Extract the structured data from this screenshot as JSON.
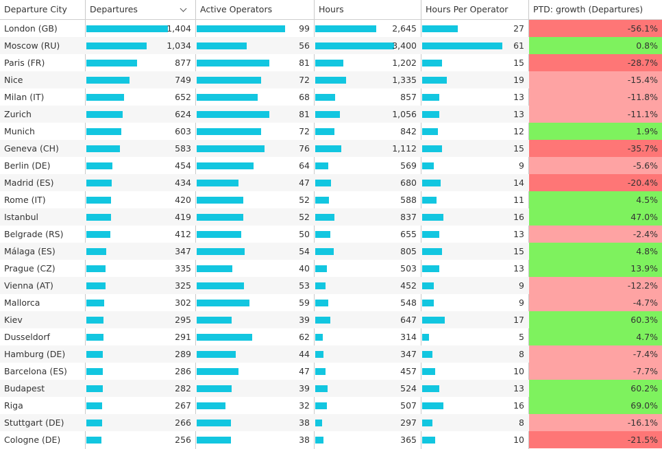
{
  "columns": {
    "city": "Departure City",
    "departures": "Departures",
    "operators": "Active Operators",
    "hours": "Hours",
    "hours_per_operator": "Hours Per Operator",
    "growth": "PTD: growth (Departures)"
  },
  "sort": {
    "column": "departures",
    "icon": "chevron-down-icon"
  },
  "colors": {
    "bar": "#12c6e0",
    "growth_strong_negative": "#fe7676",
    "growth_negative": "#fea3a3",
    "growth_positive": "#7ef25e"
  },
  "rows": [
    {
      "city": "London (GB)",
      "departures": "1,404",
      "departures_value": 1404,
      "operators": "99",
      "operators_value": 99,
      "hours": "2,645",
      "hours_value": 2645,
      "hpo": "27",
      "hpo_value": 27,
      "growth": "-56.1%",
      "growth_value": -56.1
    },
    {
      "city": "Moscow (RU)",
      "departures": "1,034",
      "departures_value": 1034,
      "operators": "56",
      "operators_value": 56,
      "hours": "3,400",
      "hours_value": 3400,
      "hpo": "61",
      "hpo_value": 61,
      "growth": "0.8%",
      "growth_value": 0.8
    },
    {
      "city": "Paris (FR)",
      "departures": "877",
      "departures_value": 877,
      "operators": "81",
      "operators_value": 81,
      "hours": "1,202",
      "hours_value": 1202,
      "hpo": "15",
      "hpo_value": 15,
      "growth": "-28.7%",
      "growth_value": -28.7
    },
    {
      "city": "Nice",
      "departures": "749",
      "departures_value": 749,
      "operators": "72",
      "operators_value": 72,
      "hours": "1,335",
      "hours_value": 1335,
      "hpo": "19",
      "hpo_value": 19,
      "growth": "-15.4%",
      "growth_value": -15.4
    },
    {
      "city": "Milan (IT)",
      "departures": "652",
      "departures_value": 652,
      "operators": "68",
      "operators_value": 68,
      "hours": "857",
      "hours_value": 857,
      "hpo": "13",
      "hpo_value": 13,
      "growth": "-11.8%",
      "growth_value": -11.8
    },
    {
      "city": "Zurich",
      "departures": "624",
      "departures_value": 624,
      "operators": "81",
      "operators_value": 81,
      "hours": "1,056",
      "hours_value": 1056,
      "hpo": "13",
      "hpo_value": 13,
      "growth": "-11.1%",
      "growth_value": -11.1
    },
    {
      "city": "Munich",
      "departures": "603",
      "departures_value": 603,
      "operators": "72",
      "operators_value": 72,
      "hours": "842",
      "hours_value": 842,
      "hpo": "12",
      "hpo_value": 12,
      "growth": "1.9%",
      "growth_value": 1.9
    },
    {
      "city": "Geneva (CH)",
      "departures": "583",
      "departures_value": 583,
      "operators": "76",
      "operators_value": 76,
      "hours": "1,112",
      "hours_value": 1112,
      "hpo": "15",
      "hpo_value": 15,
      "growth": "-35.7%",
      "growth_value": -35.7
    },
    {
      "city": "Berlin (DE)",
      "departures": "454",
      "departures_value": 454,
      "operators": "64",
      "operators_value": 64,
      "hours": "569",
      "hours_value": 569,
      "hpo": "9",
      "hpo_value": 9,
      "growth": "-5.6%",
      "growth_value": -5.6
    },
    {
      "city": "Madrid (ES)",
      "departures": "434",
      "departures_value": 434,
      "operators": "47",
      "operators_value": 47,
      "hours": "680",
      "hours_value": 680,
      "hpo": "14",
      "hpo_value": 14,
      "growth": "-20.4%",
      "growth_value": -20.4
    },
    {
      "city": "Rome (IT)",
      "departures": "420",
      "departures_value": 420,
      "operators": "52",
      "operators_value": 52,
      "hours": "588",
      "hours_value": 588,
      "hpo": "11",
      "hpo_value": 11,
      "growth": "4.5%",
      "growth_value": 4.5
    },
    {
      "city": "Istanbul",
      "departures": "419",
      "departures_value": 419,
      "operators": "52",
      "operators_value": 52,
      "hours": "837",
      "hours_value": 837,
      "hpo": "16",
      "hpo_value": 16,
      "growth": "47.0%",
      "growth_value": 47.0
    },
    {
      "city": "Belgrade (RS)",
      "departures": "412",
      "departures_value": 412,
      "operators": "50",
      "operators_value": 50,
      "hours": "655",
      "hours_value": 655,
      "hpo": "13",
      "hpo_value": 13,
      "growth": "-2.4%",
      "growth_value": -2.4
    },
    {
      "city": "Málaga (ES)",
      "departures": "347",
      "departures_value": 347,
      "operators": "54",
      "operators_value": 54,
      "hours": "805",
      "hours_value": 805,
      "hpo": "15",
      "hpo_value": 15,
      "growth": "4.8%",
      "growth_value": 4.8
    },
    {
      "city": "Prague (CZ)",
      "departures": "335",
      "departures_value": 335,
      "operators": "40",
      "operators_value": 40,
      "hours": "503",
      "hours_value": 503,
      "hpo": "13",
      "hpo_value": 13,
      "growth": "13.9%",
      "growth_value": 13.9
    },
    {
      "city": "Vienna (AT)",
      "departures": "325",
      "departures_value": 325,
      "operators": "53",
      "operators_value": 53,
      "hours": "452",
      "hours_value": 452,
      "hpo": "9",
      "hpo_value": 9,
      "growth": "-12.2%",
      "growth_value": -12.2
    },
    {
      "city": "Mallorca",
      "departures": "302",
      "departures_value": 302,
      "operators": "59",
      "operators_value": 59,
      "hours": "548",
      "hours_value": 548,
      "hpo": "9",
      "hpo_value": 9,
      "growth": "-4.7%",
      "growth_value": -4.7
    },
    {
      "city": "Kiev",
      "departures": "295",
      "departures_value": 295,
      "operators": "39",
      "operators_value": 39,
      "hours": "647",
      "hours_value": 647,
      "hpo": "17",
      "hpo_value": 17,
      "growth": "60.3%",
      "growth_value": 60.3
    },
    {
      "city": "Dusseldorf",
      "departures": "291",
      "departures_value": 291,
      "operators": "62",
      "operators_value": 62,
      "hours": "314",
      "hours_value": 314,
      "hpo": "5",
      "hpo_value": 5,
      "growth": "4.7%",
      "growth_value": 4.7
    },
    {
      "city": "Hamburg (DE)",
      "departures": "289",
      "departures_value": 289,
      "operators": "44",
      "operators_value": 44,
      "hours": "347",
      "hours_value": 347,
      "hpo": "8",
      "hpo_value": 8,
      "growth": "-7.4%",
      "growth_value": -7.4
    },
    {
      "city": "Barcelona (ES)",
      "departures": "286",
      "departures_value": 286,
      "operators": "47",
      "operators_value": 47,
      "hours": "457",
      "hours_value": 457,
      "hpo": "10",
      "hpo_value": 10,
      "growth": "-7.7%",
      "growth_value": -7.7
    },
    {
      "city": "Budapest",
      "departures": "282",
      "departures_value": 282,
      "operators": "39",
      "operators_value": 39,
      "hours": "524",
      "hours_value": 524,
      "hpo": "13",
      "hpo_value": 13,
      "growth": "60.2%",
      "growth_value": 60.2
    },
    {
      "city": "Riga",
      "departures": "267",
      "departures_value": 267,
      "operators": "32",
      "operators_value": 32,
      "hours": "507",
      "hours_value": 507,
      "hpo": "16",
      "hpo_value": 16,
      "growth": "69.0%",
      "growth_value": 69.0
    },
    {
      "city": "Stuttgart (DE)",
      "departures": "266",
      "departures_value": 266,
      "operators": "38",
      "operators_value": 38,
      "hours": "297",
      "hours_value": 297,
      "hpo": "8",
      "hpo_value": 8,
      "growth": "-16.1%",
      "growth_value": -16.1
    },
    {
      "city": "Cologne (DE)",
      "departures": "256",
      "departures_value": 256,
      "operators": "38",
      "operators_value": 38,
      "hours": "365",
      "hours_value": 365,
      "hpo": "10",
      "hpo_value": 10,
      "growth": "-21.5%",
      "growth_value": -21.5
    }
  ]
}
